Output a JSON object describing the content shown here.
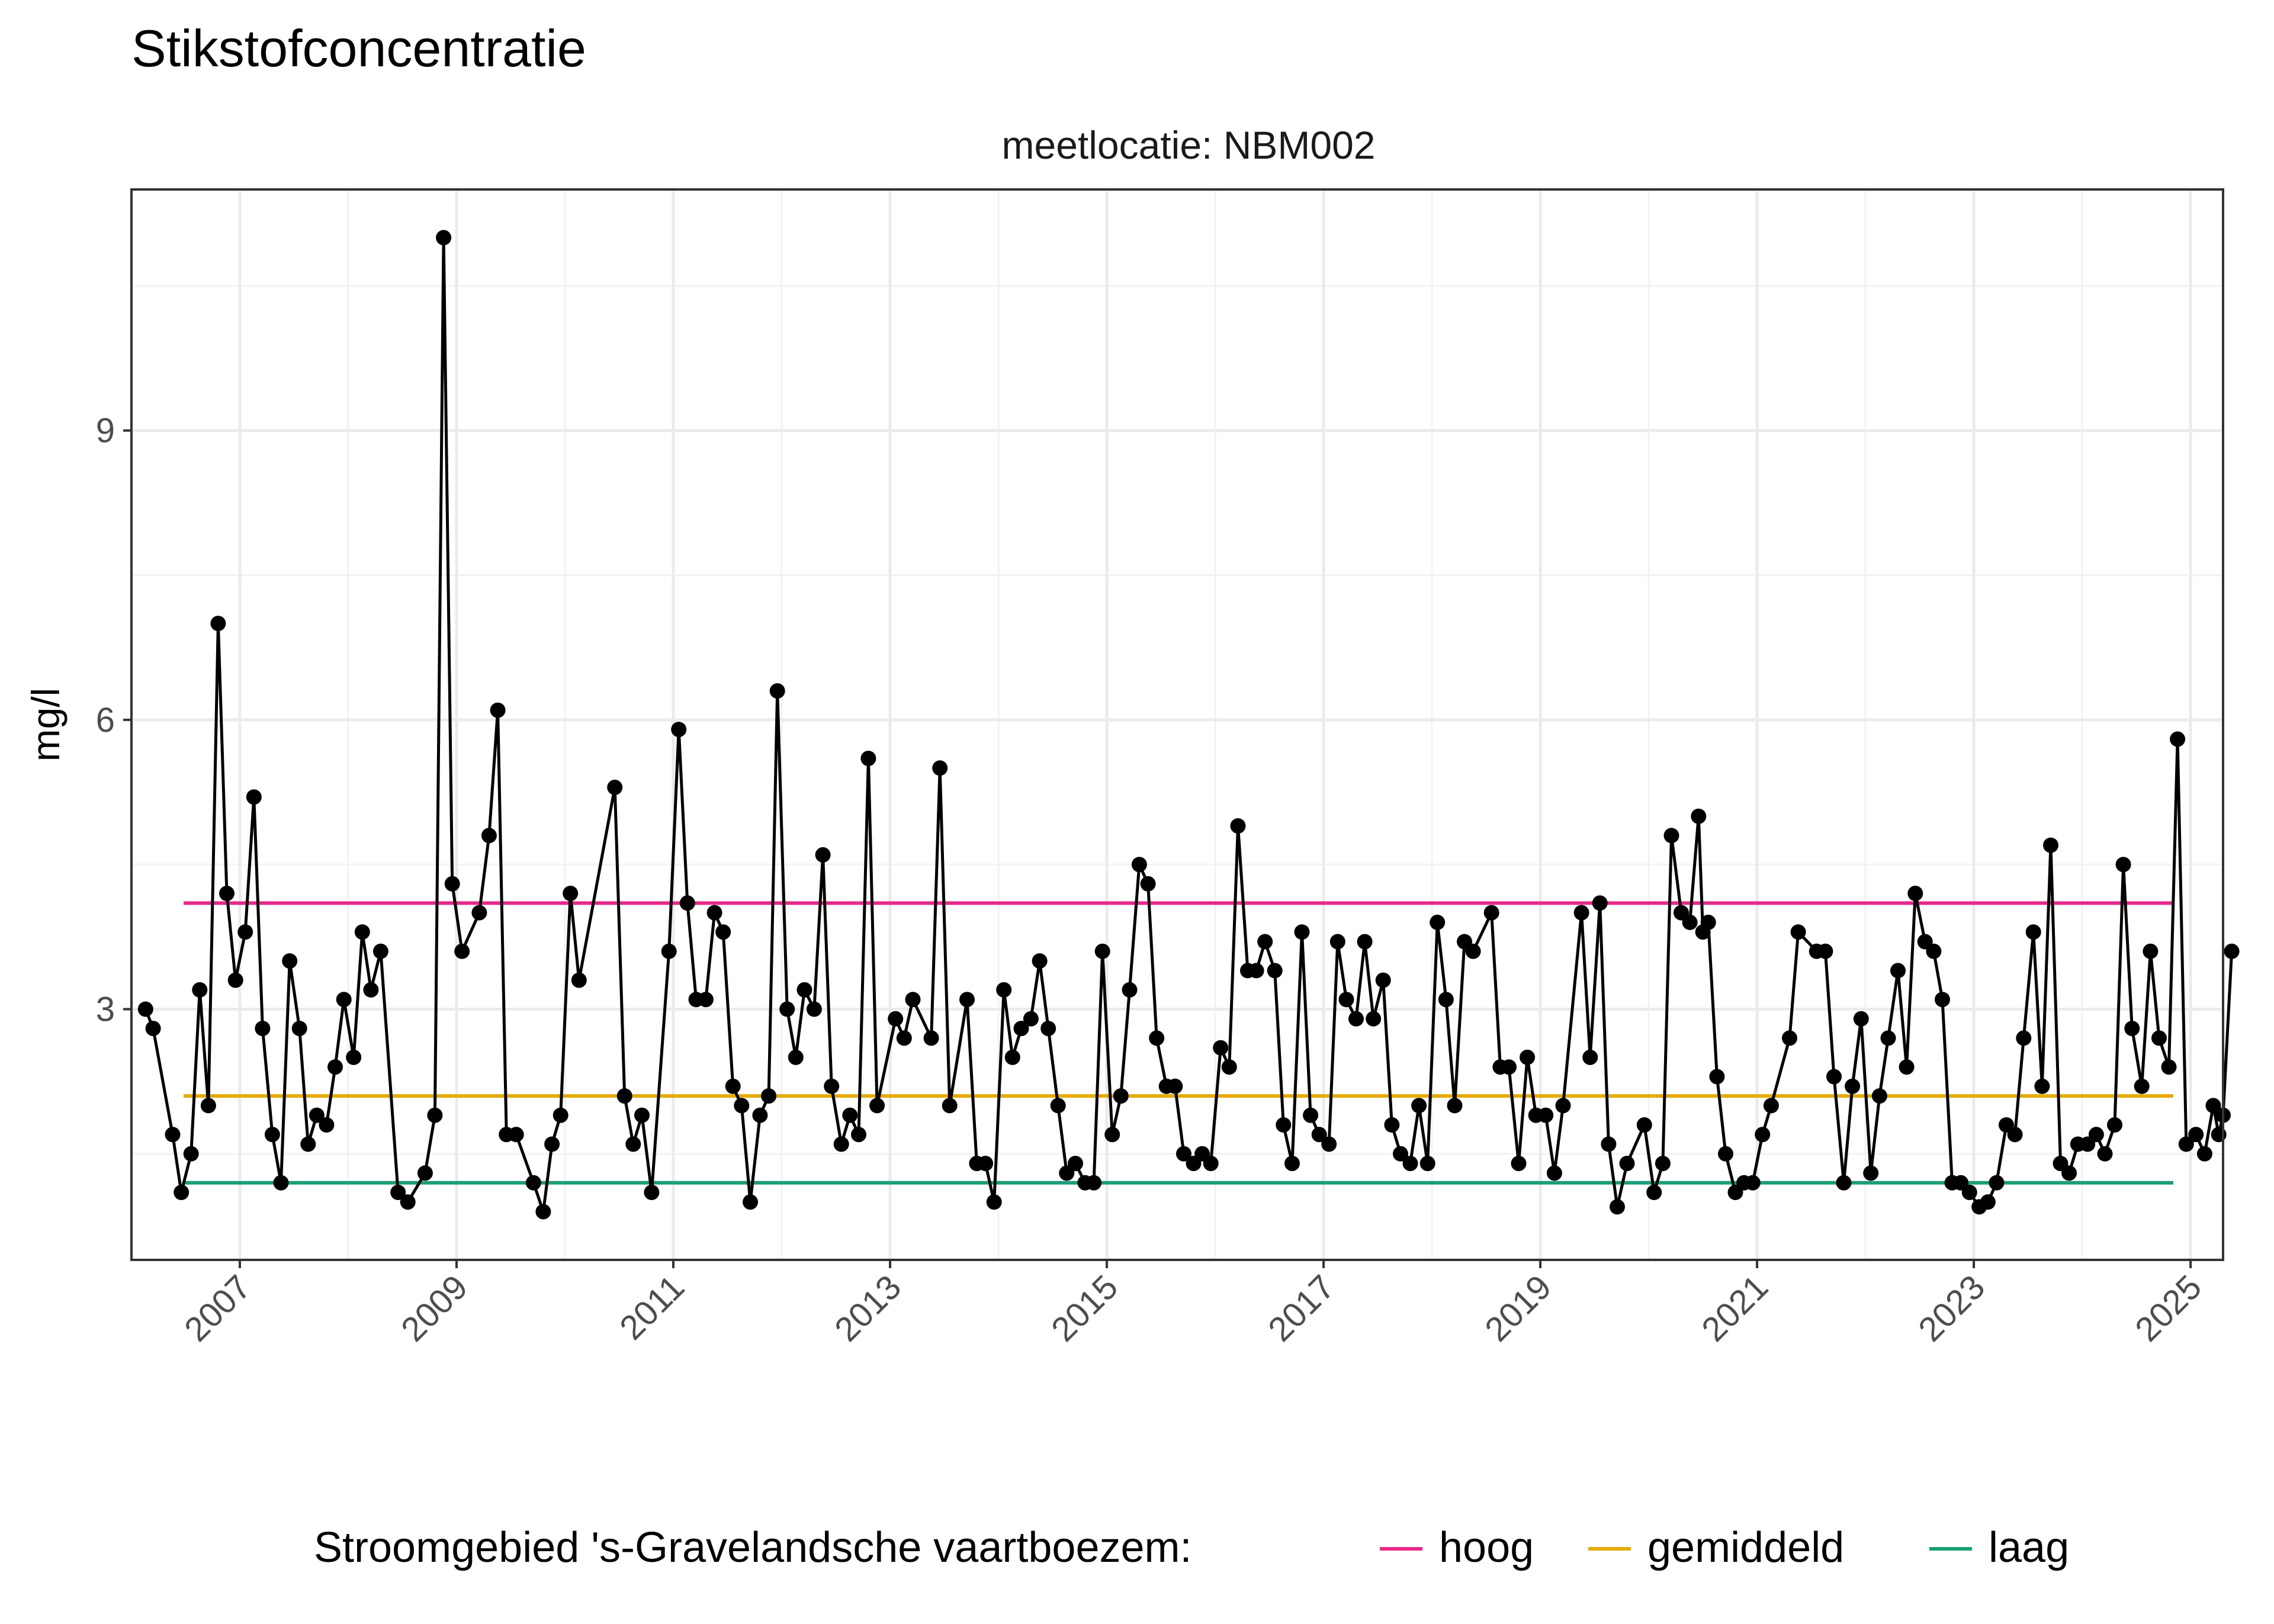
{
  "chart_data": {
    "type": "line",
    "title": "Stikstofconcentratie",
    "subtitle": "meetlocatie: NBM002",
    "xlabel": "",
    "ylabel": "mg/l",
    "xlim": [
      2006.0,
      2025.3
    ],
    "ylim": [
      0.4,
      11.5
    ],
    "x_ticks": [
      "2007",
      "2009",
      "2011",
      "2013",
      "2015",
      "2017",
      "2019",
      "2021",
      "2023",
      "2025"
    ],
    "y_ticks": [
      "3",
      "6",
      "9"
    ],
    "grid": true,
    "legend": {
      "position": "bottom",
      "title": "Stroomgebied 's-Gravelandsche vaartboezem:",
      "entries": [
        {
          "name": "hoog",
          "color": "#E7298A"
        },
        {
          "name": "gemiddeld",
          "color": "#E6AB02"
        },
        {
          "name": "laag",
          "color": "#1B9E77"
        }
      ]
    },
    "reference_lines": [
      {
        "name": "hoog",
        "value": 4.1,
        "color": "#E7298A"
      },
      {
        "name": "gemiddeld",
        "value": 2.1,
        "color": "#E6AB02"
      },
      {
        "name": "laag",
        "value": 1.2,
        "color": "#1B9E77"
      }
    ],
    "series": [
      {
        "line_color": "#000000",
        "points": [
          [
            2006.13,
            3.0
          ],
          [
            2006.2,
            2.8
          ],
          [
            2006.38,
            1.7
          ],
          [
            2006.46,
            1.1
          ],
          [
            2006.55,
            1.5
          ],
          [
            2006.63,
            3.2
          ],
          [
            2006.71,
            2.0
          ],
          [
            2006.8,
            7.0
          ],
          [
            2006.88,
            4.2
          ],
          [
            2006.96,
            3.3
          ],
          [
            2007.05,
            3.8
          ],
          [
            2007.13,
            5.2
          ],
          [
            2007.21,
            2.8
          ],
          [
            2007.3,
            1.7
          ],
          [
            2007.38,
            1.2
          ],
          [
            2007.46,
            3.5
          ],
          [
            2007.55,
            2.8
          ],
          [
            2007.63,
            1.6
          ],
          [
            2007.71,
            1.9
          ],
          [
            2007.8,
            1.8
          ],
          [
            2007.88,
            2.4
          ],
          [
            2007.96,
            3.1
          ],
          [
            2008.05,
            2.5
          ],
          [
            2008.13,
            3.8
          ],
          [
            2008.21,
            3.2
          ],
          [
            2008.3,
            3.6
          ],
          [
            2008.46,
            1.1
          ],
          [
            2008.55,
            1.0
          ],
          [
            2008.71,
            1.3
          ],
          [
            2008.8,
            1.9
          ],
          [
            2008.88,
            11.0
          ],
          [
            2008.96,
            4.3
          ],
          [
            2009.05,
            3.6
          ],
          [
            2009.21,
            4.0
          ],
          [
            2009.3,
            4.8
          ],
          [
            2009.38,
            6.1
          ],
          [
            2009.46,
            1.7
          ],
          [
            2009.55,
            1.7
          ],
          [
            2009.71,
            1.2
          ],
          [
            2009.8,
            0.9
          ],
          [
            2009.88,
            1.6
          ],
          [
            2009.96,
            1.9
          ],
          [
            2010.05,
            4.2
          ],
          [
            2010.13,
            3.3
          ],
          [
            2010.46,
            5.3
          ],
          [
            2010.55,
            2.1
          ],
          [
            2010.63,
            1.6
          ],
          [
            2010.71,
            1.9
          ],
          [
            2010.8,
            1.1
          ],
          [
            2010.96,
            3.6
          ],
          [
            2011.05,
            5.9
          ],
          [
            2011.13,
            4.1
          ],
          [
            2011.21,
            3.1
          ],
          [
            2011.3,
            3.1
          ],
          [
            2011.38,
            4.0
          ],
          [
            2011.46,
            3.8
          ],
          [
            2011.55,
            2.2
          ],
          [
            2011.63,
            2.0
          ],
          [
            2011.71,
            1.0
          ],
          [
            2011.8,
            1.9
          ],
          [
            2011.88,
            2.1
          ],
          [
            2011.96,
            6.3
          ],
          [
            2012.05,
            3.0
          ],
          [
            2012.13,
            2.5
          ],
          [
            2012.21,
            3.2
          ],
          [
            2012.3,
            3.0
          ],
          [
            2012.38,
            4.6
          ],
          [
            2012.46,
            2.2
          ],
          [
            2012.55,
            1.6
          ],
          [
            2012.63,
            1.9
          ],
          [
            2012.71,
            1.7
          ],
          [
            2012.8,
            5.6
          ],
          [
            2012.88,
            2.0
          ],
          [
            2013.05,
            2.9
          ],
          [
            2013.13,
            2.7
          ],
          [
            2013.21,
            3.1
          ],
          [
            2013.38,
            2.7
          ],
          [
            2013.46,
            5.5
          ],
          [
            2013.55,
            2.0
          ],
          [
            2013.71,
            3.1
          ],
          [
            2013.8,
            1.4
          ],
          [
            2013.88,
            1.4
          ],
          [
            2013.96,
            1.0
          ],
          [
            2014.05,
            3.2
          ],
          [
            2014.13,
            2.5
          ],
          [
            2014.21,
            2.8
          ],
          [
            2014.3,
            2.9
          ],
          [
            2014.38,
            3.5
          ],
          [
            2014.46,
            2.8
          ],
          [
            2014.55,
            2.0
          ],
          [
            2014.63,
            1.3
          ],
          [
            2014.71,
            1.4
          ],
          [
            2014.8,
            1.2
          ],
          [
            2014.88,
            1.2
          ],
          [
            2014.96,
            3.6
          ],
          [
            2015.05,
            1.7
          ],
          [
            2015.13,
            2.1
          ],
          [
            2015.21,
            3.2
          ],
          [
            2015.3,
            4.5
          ],
          [
            2015.38,
            4.3
          ],
          [
            2015.46,
            2.7
          ],
          [
            2015.55,
            2.2
          ],
          [
            2015.63,
            2.2
          ],
          [
            2015.71,
            1.5
          ],
          [
            2015.8,
            1.4
          ],
          [
            2015.88,
            1.5
          ],
          [
            2015.96,
            1.4
          ],
          [
            2016.05,
            2.6
          ],
          [
            2016.13,
            2.4
          ],
          [
            2016.21,
            4.9
          ],
          [
            2016.3,
            3.4
          ],
          [
            2016.38,
            3.4
          ],
          [
            2016.46,
            3.7
          ],
          [
            2016.55,
            3.4
          ],
          [
            2016.63,
            1.8
          ],
          [
            2016.71,
            1.4
          ],
          [
            2016.8,
            3.8
          ],
          [
            2016.88,
            1.9
          ],
          [
            2016.96,
            1.7
          ],
          [
            2017.05,
            1.6
          ],
          [
            2017.13,
            3.7
          ],
          [
            2017.21,
            3.1
          ],
          [
            2017.3,
            2.9
          ],
          [
            2017.38,
            3.7
          ],
          [
            2017.46,
            2.9
          ],
          [
            2017.55,
            3.3
          ],
          [
            2017.63,
            1.8
          ],
          [
            2017.71,
            1.5
          ],
          [
            2017.8,
            1.4
          ],
          [
            2017.88,
            2.0
          ],
          [
            2017.96,
            1.4
          ],
          [
            2018.05,
            3.9
          ],
          [
            2018.13,
            3.1
          ],
          [
            2018.21,
            2.0
          ],
          [
            2018.3,
            3.7
          ],
          [
            2018.38,
            3.6
          ],
          [
            2018.55,
            4.0
          ],
          [
            2018.63,
            2.4
          ],
          [
            2018.71,
            2.4
          ],
          [
            2018.8,
            1.4
          ],
          [
            2018.88,
            2.5
          ],
          [
            2018.96,
            1.9
          ],
          [
            2019.05,
            1.9
          ],
          [
            2019.13,
            1.3
          ],
          [
            2019.21,
            2.0
          ],
          [
            2019.38,
            4.0
          ],
          [
            2019.46,
            2.5
          ],
          [
            2019.55,
            4.1
          ],
          [
            2019.63,
            1.6
          ],
          [
            2019.71,
            0.95
          ],
          [
            2019.8,
            1.4
          ],
          [
            2019.96,
            1.8
          ],
          [
            2020.05,
            1.1
          ],
          [
            2020.13,
            1.4
          ],
          [
            2020.21,
            4.8
          ],
          [
            2020.3,
            4.0
          ],
          [
            2020.38,
            3.9
          ],
          [
            2020.46,
            5.0
          ],
          [
            2020.5,
            3.8
          ],
          [
            2020.55,
            3.9
          ],
          [
            2020.63,
            2.3
          ],
          [
            2020.71,
            1.5
          ],
          [
            2020.8,
            1.1
          ],
          [
            2020.88,
            1.2
          ],
          [
            2020.96,
            1.2
          ],
          [
            2021.05,
            1.7
          ],
          [
            2021.13,
            2.0
          ],
          [
            2021.3,
            2.7
          ],
          [
            2021.38,
            3.8
          ],
          [
            2021.55,
            3.6
          ],
          [
            2021.63,
            3.6
          ],
          [
            2021.71,
            2.3
          ],
          [
            2021.8,
            1.2
          ],
          [
            2021.88,
            2.2
          ],
          [
            2021.96,
            2.9
          ],
          [
            2022.05,
            1.3
          ],
          [
            2022.13,
            2.1
          ],
          [
            2022.21,
            2.7
          ],
          [
            2022.3,
            3.4
          ],
          [
            2022.38,
            2.4
          ],
          [
            2022.46,
            4.2
          ],
          [
            2022.55,
            3.7
          ],
          [
            2022.63,
            3.6
          ],
          [
            2022.71,
            3.1
          ],
          [
            2022.8,
            1.2
          ],
          [
            2022.88,
            1.2
          ],
          [
            2022.96,
            1.1
          ],
          [
            2023.05,
            0.95
          ],
          [
            2023.13,
            1.0
          ],
          [
            2023.21,
            1.2
          ],
          [
            2023.3,
            1.8
          ],
          [
            2023.38,
            1.7
          ],
          [
            2023.46,
            2.7
          ],
          [
            2023.55,
            3.8
          ],
          [
            2023.63,
            2.2
          ],
          [
            2023.71,
            4.7
          ],
          [
            2023.8,
            1.4
          ],
          [
            2023.88,
            1.3
          ],
          [
            2023.96,
            1.6
          ],
          [
            2024.05,
            1.6
          ],
          [
            2024.13,
            1.7
          ],
          [
            2024.21,
            1.5
          ],
          [
            2024.3,
            1.8
          ],
          [
            2024.38,
            4.5
          ],
          [
            2024.46,
            2.8
          ],
          [
            2024.55,
            2.2
          ],
          [
            2024.63,
            3.6
          ],
          [
            2024.71,
            2.7
          ],
          [
            2024.8,
            2.4
          ],
          [
            2024.88,
            5.8
          ],
          [
            2024.96,
            1.6
          ],
          [
            2025.05,
            1.7
          ],
          [
            2025.13,
            1.5
          ],
          [
            2025.21,
            2.0
          ],
          [
            2025.26,
            1.7
          ],
          [
            2025.3,
            1.9
          ],
          [
            2025.38,
            3.6
          ]
        ]
      }
    ]
  }
}
